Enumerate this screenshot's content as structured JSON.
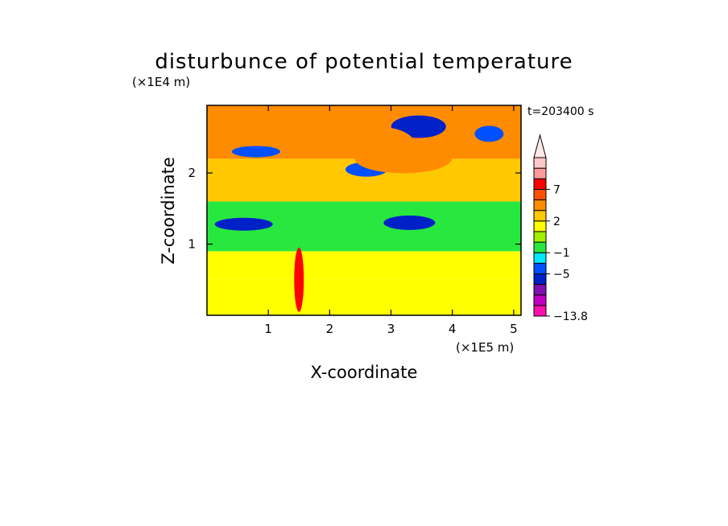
{
  "chart_data": {
    "type": "heatmap",
    "title": "disturbunce of potential temperature",
    "xlabel": "X-coordinate",
    "ylabel": "Z-coordinate",
    "x_unit": "(×1E5 m)",
    "y_unit": "(×1E4 m)",
    "time_label": "t=203400 s",
    "xlim": [
      0,
      5.12
    ],
    "ylim": [
      0,
      2.95
    ],
    "x_ticks": [
      "1",
      "2",
      "3",
      "4",
      "5"
    ],
    "x_tick_values": [
      1,
      2,
      3,
      4,
      5
    ],
    "y_ticks": [
      "1",
      "2"
    ],
    "y_tick_values": [
      1,
      2
    ],
    "colorbar": {
      "levels": [
        -13.8,
        -11,
        -9,
        -7,
        -5,
        -3,
        -1,
        0,
        1,
        2,
        3,
        5,
        7,
        9,
        11
      ],
      "labels": [
        "7",
        "2",
        "−1",
        "−5",
        "−13.8"
      ],
      "label_values": [
        7,
        2,
        -1,
        -5,
        -13.8
      ],
      "colors": [
        "#ff10b0",
        "#c000c0",
        "#8010b0",
        "#0020c8",
        "#0050ff",
        "#00e8ff",
        "#28e840",
        "#a0f000",
        "#ffff00",
        "#ffc800",
        "#ff8c00",
        "#ff5000",
        "#ff0000",
        "#ff9a9a",
        "#ffc8c8"
      ],
      "extend": "max"
    },
    "regions": [
      {
        "zmin": 0,
        "zmax": 0.5,
        "value": 1.5
      },
      {
        "zmin": 0.5,
        "zmax": 0.9,
        "value": 1.3
      },
      {
        "zmin": 0.9,
        "zmax": 1.3,
        "value": -1.0
      },
      {
        "zmin": 1.3,
        "zmax": 1.6,
        "value": -0.5
      },
      {
        "zmin": 1.6,
        "zmax": 2.2,
        "value": 2.2
      },
      {
        "zmin": 2.2,
        "zmax": 2.95,
        "value": 3.5
      }
    ],
    "features": [
      {
        "x": 3.45,
        "z": 2.65,
        "value": -6
      },
      {
        "x": 3.3,
        "z": 1.3,
        "value": -6
      },
      {
        "x": 0.6,
        "z": 1.28,
        "value": -5.5
      },
      {
        "x": 2.6,
        "z": 2.05,
        "value": -5
      },
      {
        "x": 4.6,
        "z": 2.55,
        "value": -5
      },
      {
        "x": 0.8,
        "z": 2.3,
        "value": -5
      },
      {
        "x": 2.8,
        "z": 2.4,
        "value": 4
      },
      {
        "x": 3.2,
        "z": 2.2,
        "value": 4.5
      },
      {
        "x": 1.5,
        "z": 0.5,
        "value": 7
      }
    ]
  }
}
